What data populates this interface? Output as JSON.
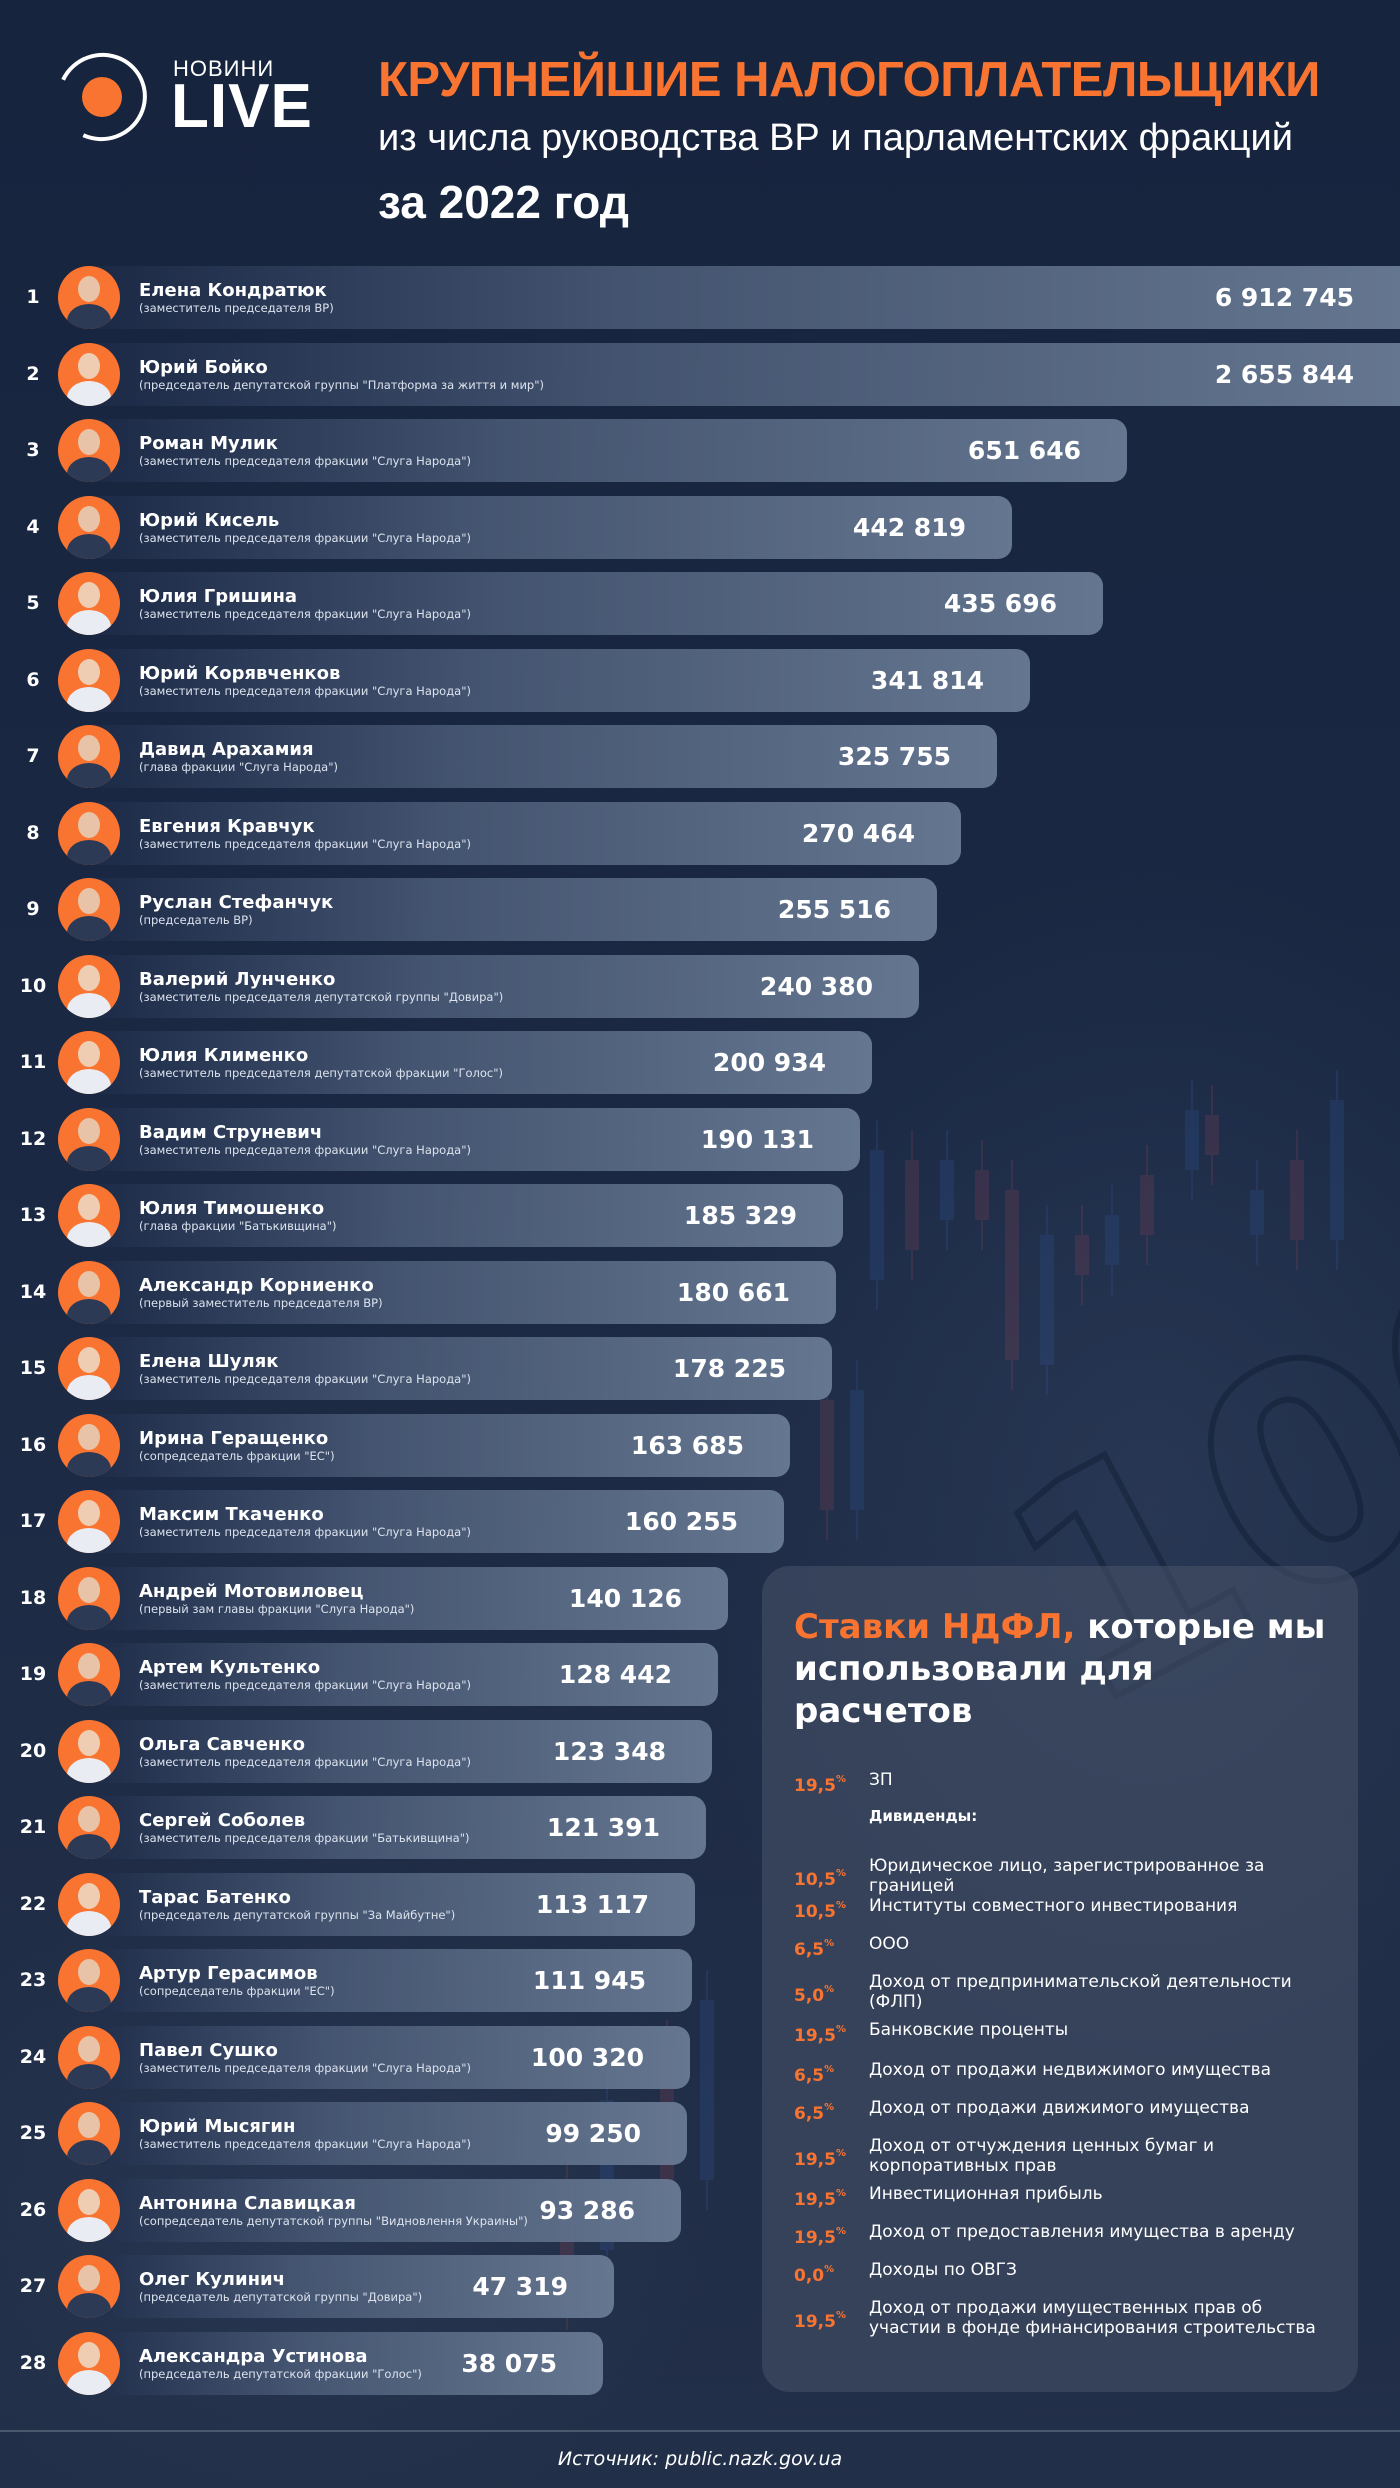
{
  "brand": {
    "logo_top": "НОВИНИ",
    "logo_main": "LIVE",
    "accent_color": "#f97430",
    "background_color": "#18253f"
  },
  "header": {
    "title": "КРУПНЕЙШИЕ НАЛОГОПЛАТЕЛЬЩИКИ",
    "subtitle": "из числа руководства ВР и парламентских фракций",
    "period": "за 2022 год"
  },
  "rows": [
    {
      "rank": "1",
      "name": "Елена Кондратюк",
      "role": "(заместитель председателя ВР)",
      "value": "6 912 745"
    },
    {
      "rank": "2",
      "name": "Юрий Бойко",
      "role": "(председатель депутатской группы \"Платформа за життя и мир\")",
      "value": "2 655 844"
    },
    {
      "rank": "3",
      "name": "Роман Мулик",
      "role": "(заместитель председателя фракции \"Слуга Народа\")",
      "value": "651 646"
    },
    {
      "rank": "4",
      "name": "Юрий Кисель",
      "role": "(заместитель председателя фракции \"Слуга Народа\")",
      "value": "442 819"
    },
    {
      "rank": "5",
      "name": "Юлия Гришина",
      "role": "(заместитель председателя фракции \"Слуга Народа\")",
      "value": "435 696"
    },
    {
      "rank": "6",
      "name": "Юрий Корявченков",
      "role": "(заместитель председателя фракции \"Слуга Народа\")",
      "value": "341 814"
    },
    {
      "rank": "7",
      "name": "Давид Арахамия",
      "role": "(глава фракции \"Слуга Народа\")",
      "value": "325 755"
    },
    {
      "rank": "8",
      "name": "Евгения Кравчук",
      "role": "(заместитель председателя фракции \"Слуга Народа\")",
      "value": "270 464"
    },
    {
      "rank": "9",
      "name": "Руслан Стефанчук",
      "role": "(председатель ВР)",
      "value": "255 516"
    },
    {
      "rank": "10",
      "name": "Валерий Лунченко",
      "role": "(заместитель председателя депутатской группы \"Довира\")",
      "value": "240 380"
    },
    {
      "rank": "11",
      "name": "Юлия Клименко",
      "role": "(заместитель председателя депутатской фракции \"Голос\")",
      "value": "200 934"
    },
    {
      "rank": "12",
      "name": "Вадим Струневич",
      "role": "(заместитель председателя фракции \"Слуга Народа\")",
      "value": "190 131"
    },
    {
      "rank": "13",
      "name": "Юлия Тимошенко",
      "role": "(глава фракции \"Батькивщина\")",
      "value": "185 329"
    },
    {
      "rank": "14",
      "name": "Александр Корниенко",
      "role": "(первый заместитель председателя ВР)",
      "value": "180 661"
    },
    {
      "rank": "15",
      "name": "Елена Шуляк",
      "role": "(заместитель председателя фракции \"Слуга Народа\")",
      "value": "178 225"
    },
    {
      "rank": "16",
      "name": "Ирина Геращенко",
      "role": "(сопредседатель фракции \"ЕС\")",
      "value": "163 685"
    },
    {
      "rank": "17",
      "name": "Максим Ткаченко",
      "role": "(заместитель председателя фракции \"Слуга Народа\")",
      "value": "160 255"
    },
    {
      "rank": "18",
      "name": "Андрей Мотовиловец",
      "role": "(первый зам главы фракции \"Слуга Народа\")",
      "value": "140 126"
    },
    {
      "rank": "19",
      "name": "Артем Культенко",
      "role": "(заместитель председателя фракции \"Слуга Народа\")",
      "value": "128 442"
    },
    {
      "rank": "20",
      "name": "Ольга Савченко",
      "role": "(заместитель председателя фракции \"Слуга Народа\")",
      "value": "123 348"
    },
    {
      "rank": "21",
      "name": "Сергей Соболев",
      "role": "(заместитель председателя фракции \"Батькивщина\")",
      "value": "121 391"
    },
    {
      "rank": "22",
      "name": "Тарас Батенко",
      "role": "(председатель депутатской группы \"За Майбутне\")",
      "value": "113 117"
    },
    {
      "rank": "23",
      "name": "Артур Герасимов",
      "role": "(сопредседатель фракции \"ЕС\")",
      "value": "111 945"
    },
    {
      "rank": "24",
      "name": "Павел Сушко",
      "role": "(заместитель председателя фракции \"Слуга Народа\")",
      "value": "100 320"
    },
    {
      "rank": "25",
      "name": "Юрий Мысягин",
      "role": "(заместитель председателя фракции \"Слуга Народа\")",
      "value": "99 250"
    },
    {
      "rank": "26",
      "name": "Антонина Славицкая",
      "role": "(сопредседатель депутатской группы \"Видновлення Украины\")",
      "value": "93 286"
    },
    {
      "rank": "27",
      "name": "Олег Кулинич",
      "role": "(председатель депутатской группы \"Довира\")",
      "value": "47 319"
    },
    {
      "rank": "28",
      "name": "Александра Устинова",
      "role": "(председатель депутатской фракции \"Голос\")",
      "value": "38 075"
    }
  ],
  "rates_panel": {
    "title_accent": "Ставки НДФЛ,",
    "title_rest": " которые мы использовали для расчетов",
    "percent_sign": "%",
    "items": [
      {
        "pct": "19,5",
        "label": "ЗП"
      },
      {
        "pct": "",
        "label": "Дивиденды:"
      },
      {
        "pct": "10,5",
        "label": "Юридическое лицо, зарегистрированное за границей"
      },
      {
        "pct": "10,5",
        "label": "Институты совместного инвестирования"
      },
      {
        "pct": "6,5",
        "label": "ООО"
      },
      {
        "pct": "5,0",
        "label": "Доход от предпринимательской деятельности (ФЛП)"
      },
      {
        "pct": "19,5",
        "label": "Банковские проценты"
      },
      {
        "pct": "6,5",
        "label": "Доход от продажи недвижимого имущества"
      },
      {
        "pct": "6,5",
        "label": "Доход от продажи движимого имущества"
      },
      {
        "pct": "19,5",
        "label": "Доход от отчуждения ценных бумаг и корпоративных прав"
      },
      {
        "pct": "19,5",
        "label": "Инвестиционная прибыль"
      },
      {
        "pct": "19,5",
        "label": "Доход от предоставления имущества в аренду"
      },
      {
        "pct": "0,0",
        "label": "Доходы по ОВГЗ"
      },
      {
        "pct": "19,5",
        "label": "Доход от продажи имущественных прав об участии в фонде финансирования строительства"
      }
    ]
  },
  "footer": {
    "source": "Источник: public.nazk.gov.ua"
  },
  "chart_data": {
    "type": "bar",
    "orientation": "horizontal",
    "title": "КРУПНЕЙШИЕ НАЛОГОПЛАТЕЛЬЩИКИ из числа руководства ВР и парламентских фракций за 2022 год",
    "xlabel": "",
    "ylabel": "",
    "grid": false,
    "legend": null,
    "categories": [
      "Елена Кондратюк",
      "Юрий Бойко",
      "Роман Мулик",
      "Юрий Кисель",
      "Юлия Гришина",
      "Юрий Корявченков",
      "Давид Арахамия",
      "Евгения Кравчук",
      "Руслан Стефанчук",
      "Валерий Лунченко",
      "Юлия Клименко",
      "Вадим Струневич",
      "Юлия Тимошенко",
      "Александр Корниенко",
      "Елена Шуляк",
      "Ирина Геращенко",
      "Максим Ткаченко",
      "Андрей Мотовиловец",
      "Артем Культенко",
      "Ольга Савченко",
      "Сергей Соболев",
      "Тарас Батенко",
      "Артур Герасимов",
      "Павел Сушко",
      "Юрий Мысягин",
      "Антонина Славицкая",
      "Олег Кулинич",
      "Александра Устинова"
    ],
    "values": [
      6912745,
      2655844,
      651646,
      442819,
      435696,
      341814,
      325755,
      270464,
      255516,
      240380,
      200934,
      190131,
      185329,
      180661,
      178225,
      163685,
      160255,
      140126,
      128442,
      123348,
      121391,
      113117,
      111945,
      100320,
      99250,
      93286,
      47319,
      38075
    ],
    "annotations": [
      "Источник: public.nazk.gov.ua"
    ]
  }
}
